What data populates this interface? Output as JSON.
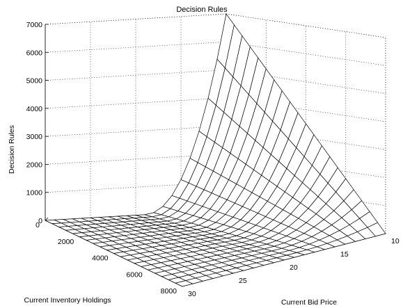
{
  "chart_data": {
    "type": "surface",
    "title": "Decision Rules",
    "xlabel": "Current Bid Price",
    "ylabel": "Current Inventory Holdings",
    "zlabel": "Decision Rules",
    "x_range": [
      10,
      30
    ],
    "y_range": [
      0,
      8000
    ],
    "z_range": [
      0,
      7000
    ],
    "x_ticks": [
      "10",
      "15",
      "20",
      "25",
      "30"
    ],
    "y_ticks": [
      "0",
      "2000",
      "4000",
      "6000",
      "8000"
    ],
    "z_ticks": [
      "0",
      "1000",
      "2000",
      "3000",
      "4000",
      "5000",
      "6000",
      "7000"
    ],
    "grid": true,
    "mesh_resolution": [
      21,
      21
    ],
    "surface_color": "#ffffff",
    "line_color": "#000000",
    "description_points": [
      {
        "x": 10,
        "y": 0,
        "z": 7000
      },
      {
        "x": 10,
        "y": 8000,
        "z": 0
      },
      {
        "x": 30,
        "y": 0,
        "z": 0
      },
      {
        "x": 30,
        "y": 8000,
        "z": 0
      }
    ]
  }
}
